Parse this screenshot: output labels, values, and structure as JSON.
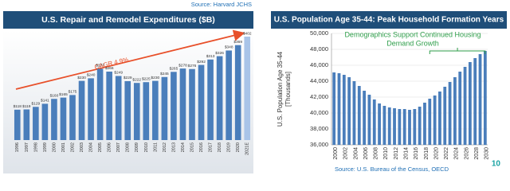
{
  "chart_data": [
    {
      "type": "bar",
      "title": "U.S. Repair and Remodel Expenditures ($B)",
      "source": "Source:  Harvard JCHS",
      "annotation": "CAGR 4.9%",
      "categories": [
        "1996",
        "1997",
        "1998",
        "1999",
        "2000",
        "2001",
        "2002",
        "2003",
        "2004",
        "2005",
        "2006",
        "2007",
        "2008",
        "2009",
        "2010",
        "2011",
        "2012",
        "2013",
        "2014",
        "2015",
        "2016",
        "2017",
        "2018",
        "2019",
        "2020",
        "2021E"
      ],
      "values": [
        118,
        119,
        129,
        141,
        160,
        165,
        175,
        230,
        240,
        277,
        266,
        249,
        229,
        222,
        225,
        230,
        245,
        265,
        278,
        276,
        292,
        313,
        326,
        348,
        369,
        402
      ],
      "value_labels": [
        "$118",
        "$119",
        "$129",
        "$141",
        "$160",
        "$165",
        "$175",
        "$230",
        "$240",
        "$277",
        "$266",
        "$249",
        "$229",
        "$222",
        "$225",
        "$230",
        "$245",
        "$265",
        "$278",
        "$276",
        "$292",
        "$313",
        "$326",
        "$348",
        "$369",
        "$402"
      ],
      "colors": [
        "#4a7ebb",
        "#4a7ebb",
        "#4a7ebb",
        "#4a7ebb",
        "#4a7ebb",
        "#4a7ebb",
        "#4a7ebb",
        "#4a7ebb",
        "#4a7ebb",
        "#4a7ebb",
        "#4a7ebb",
        "#4a7ebb",
        "#4a7ebb",
        "#4a7ebb",
        "#4a7ebb",
        "#4a7ebb",
        "#4a7ebb",
        "#4a7ebb",
        "#4a7ebb",
        "#4a7ebb",
        "#4a7ebb",
        "#4a7ebb",
        "#4a7ebb",
        "#4a7ebb",
        "#4a7ebb",
        "#a9c4e8"
      ]
    },
    {
      "type": "bar",
      "title": "U.S. Population Age 35-44:  Peak Household Formation Years",
      "source": "Source:  U.S. Bureau of the Census, OECD",
      "annotation": [
        "Demographics Support Continued Housing",
        "Demand Growth"
      ],
      "ylabel": [
        "U.S. Population Age 35-44",
        "[Thousands]"
      ],
      "categories": [
        "2000",
        null,
        "2002",
        null,
        "2004",
        null,
        "2006",
        null,
        "2008",
        null,
        "2010",
        null,
        "2012",
        null,
        "2014",
        null,
        "2016",
        null,
        "2018",
        null,
        "2020",
        null,
        "2022",
        null,
        "2024",
        null,
        "2026",
        null,
        "2028",
        null,
        "2030"
      ],
      "values": [
        45100,
        45000,
        44800,
        44500,
        44000,
        43400,
        42800,
        42300,
        41700,
        41200,
        40900,
        40700,
        40600,
        40500,
        40500,
        40400,
        40500,
        40800,
        41300,
        41800,
        42200,
        42700,
        43300,
        43900,
        44500,
        45200,
        45800,
        46400,
        46900,
        47400,
        47800
      ],
      "color": "#4a7ebb",
      "ylim": [
        36000,
        50000
      ],
      "yticks": [
        {
          "value": 36000,
          "label": "36,000"
        },
        {
          "value": 38000,
          "label": "38,000"
        },
        {
          "value": 40000,
          "label": "40,000"
        },
        {
          "value": 42000,
          "label": "42,000"
        },
        {
          "value": 44000,
          "label": "44,000"
        },
        {
          "value": 46000,
          "label": "46,000"
        },
        {
          "value": 48000,
          "label": "48,000"
        },
        {
          "value": 50000,
          "label": "50,000"
        }
      ],
      "grid": true
    }
  ],
  "page_number": "10"
}
